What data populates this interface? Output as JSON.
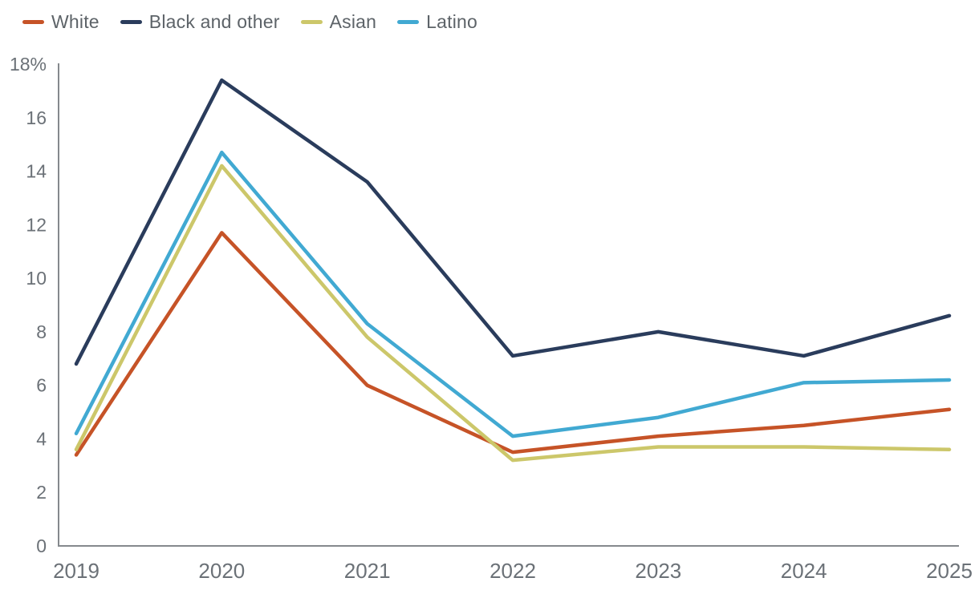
{
  "chart_data": {
    "type": "line",
    "title": "",
    "xlabel": "",
    "ylabel": "",
    "x": [
      2019,
      2020,
      2021,
      2022,
      2023,
      2024,
      2025
    ],
    "series": [
      {
        "name": "White",
        "color": "#c65327",
        "values": [
          3.4,
          11.7,
          6.0,
          3.5,
          4.1,
          4.5,
          5.1
        ]
      },
      {
        "name": "Black and other",
        "color": "#2a3c5c",
        "values": [
          6.8,
          17.4,
          13.6,
          7.1,
          8.0,
          7.1,
          8.6
        ]
      },
      {
        "name": "Asian",
        "color": "#ccc76a",
        "values": [
          3.6,
          14.2,
          7.8,
          3.2,
          3.7,
          3.7,
          3.6
        ]
      },
      {
        "name": "Latino",
        "color": "#41a9d2",
        "values": [
          4.2,
          14.7,
          8.3,
          4.1,
          4.8,
          6.1,
          6.2
        ]
      }
    ],
    "ylim": [
      0,
      18
    ],
    "ytick_step": 2,
    "ytick_top_label": "18%",
    "grid": false,
    "legend_position": "top-left",
    "axis_color": "#85898d",
    "tick_label_color": "#6b7177",
    "legend_text_color": "#5d6368",
    "line_width": 4.5
  }
}
